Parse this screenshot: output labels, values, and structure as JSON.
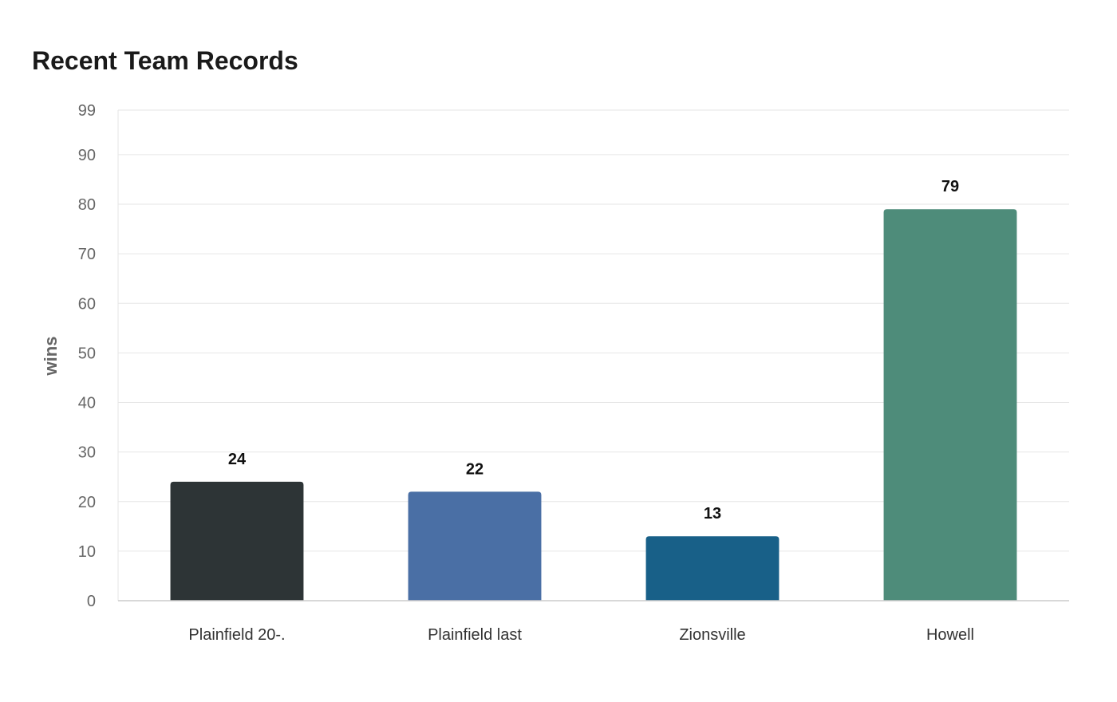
{
  "chart_data": {
    "type": "bar",
    "title": "Recent Team Records",
    "xlabel": "",
    "ylabel": "wins",
    "ylim": [
      0,
      99
    ],
    "yticks": [
      0,
      10,
      20,
      30,
      40,
      50,
      60,
      70,
      80,
      90,
      99
    ],
    "categories": [
      "Plainfield 20-.",
      "Plainfield last",
      "Zionsville",
      "Howell"
    ],
    "values": [
      24,
      22,
      13,
      79
    ],
    "colors": [
      "#2d3436",
      "#4a6fa5",
      "#186088",
      "#4e8c7a"
    ],
    "grid": true,
    "legend": "none"
  }
}
